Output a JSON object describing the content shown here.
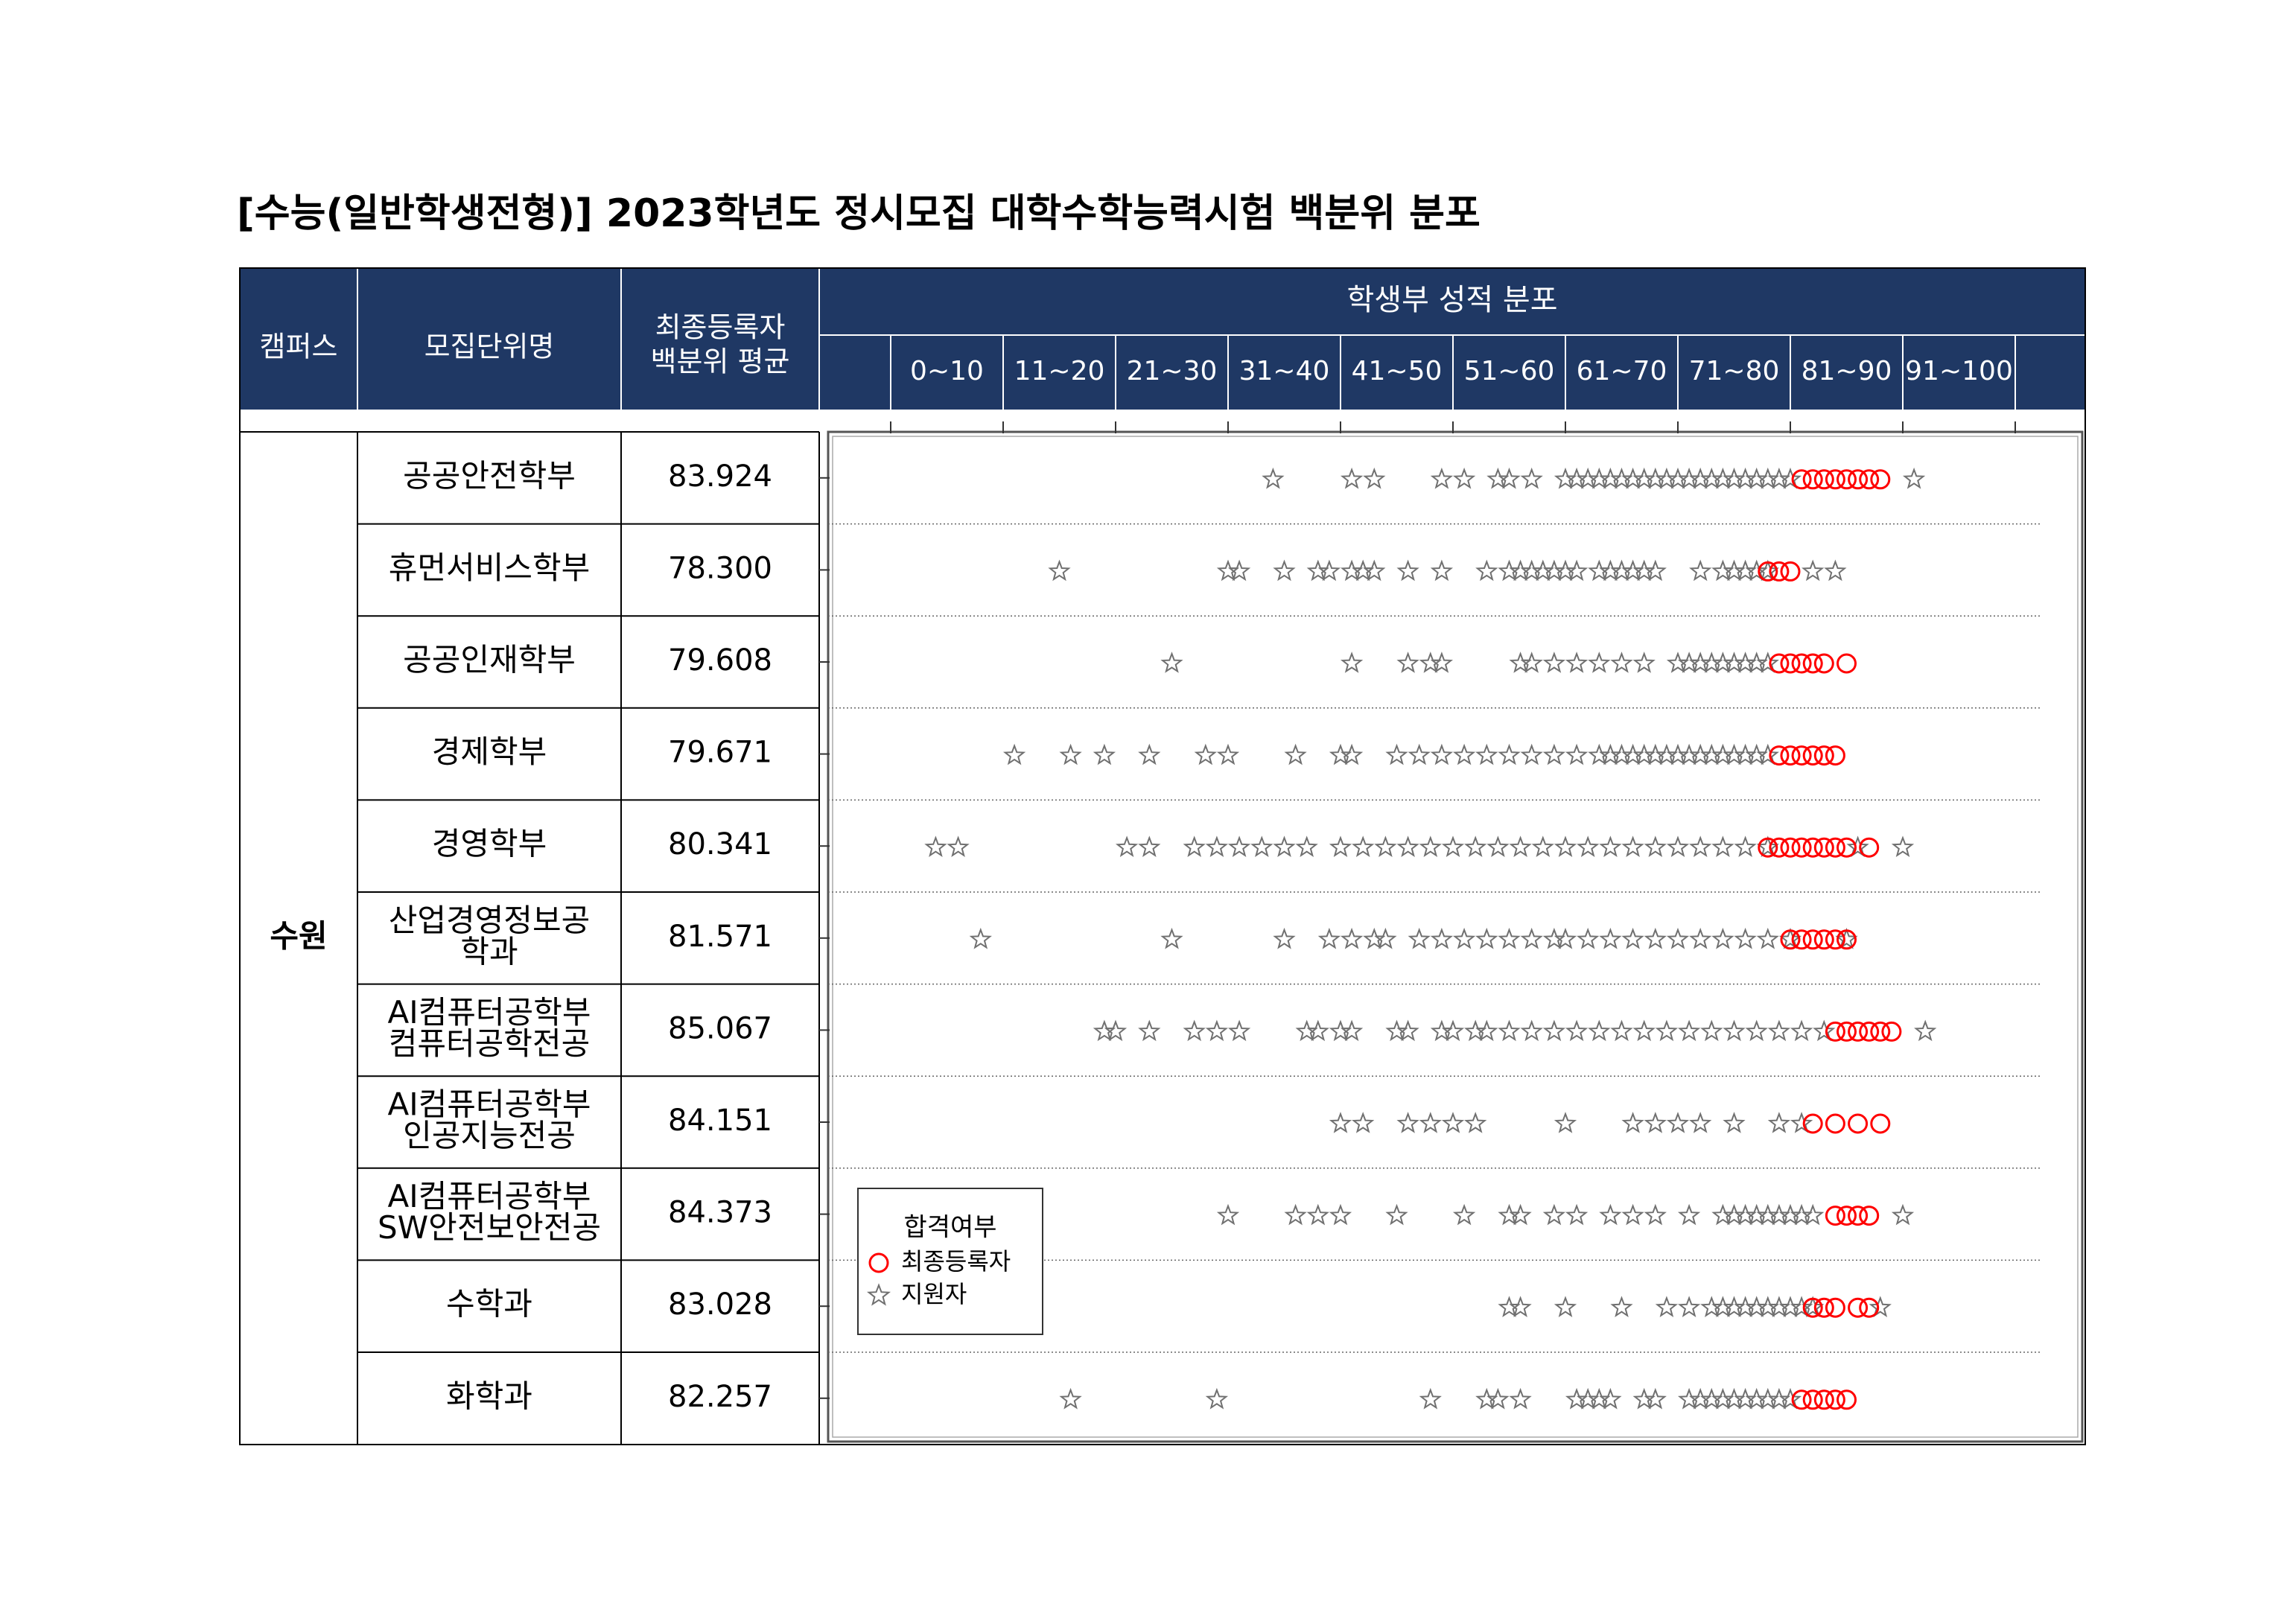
{
  "title": "[수능(일반학생전형)]  2023학년도  정시모집  대학수학능력시험  백분위  분포",
  "table": {
    "header": {
      "campus": "캠퍼스",
      "unit": "모집단위명",
      "avg": [
        "최종등록자",
        "백분위 평균"
      ],
      "distribution": "학생부 성적 분포",
      "bins": [
        "0~10",
        "11~20",
        "21~30",
        "31~40",
        "41~50",
        "51~60",
        "61~70",
        "71~80",
        "81~90",
        "91~100"
      ]
    },
    "campus": "수원",
    "rows": [
      {
        "unit": [
          "공공안전학부"
        ],
        "avg": "83.924"
      },
      {
        "unit": [
          "휴먼서비스학부"
        ],
        "avg": "78.300"
      },
      {
        "unit": [
          "공공인재학부"
        ],
        "avg": "79.608"
      },
      {
        "unit": [
          "경제학부"
        ],
        "avg": "79.671"
      },
      {
        "unit": [
          "경영학부"
        ],
        "avg": "80.341"
      },
      {
        "unit": [
          "산업경영정보공",
          "학과"
        ],
        "avg": "81.571"
      },
      {
        "unit": [
          "AI컴퓨터공학부",
          "컴퓨터공학전공"
        ],
        "avg": "85.067"
      },
      {
        "unit": [
          "AI컴퓨터공학부",
          "인공지능전공"
        ],
        "avg": "84.151"
      },
      {
        "unit": [
          "AI컴퓨터공학부",
          "SW안전보안전공"
        ],
        "avg": "84.373"
      },
      {
        "unit": [
          "수학과"
        ],
        "avg": "83.028"
      },
      {
        "unit": [
          "화학과"
        ],
        "avg": "82.257"
      }
    ]
  },
  "chart_data": {
    "type": "strip",
    "legend_title": "합격여부",
    "xlim": [
      0,
      100
    ],
    "xticks": [
      0,
      10,
      20,
      30,
      40,
      50,
      60,
      70,
      80,
      90,
      100
    ],
    "series": [
      {
        "name": "최종등록자",
        "color": "#ff0000",
        "marker": "circle",
        "values": [
          [
            81,
            82,
            83,
            84,
            85,
            86,
            87,
            88
          ],
          [
            78,
            79,
            80
          ],
          [
            79,
            80,
            81,
            82,
            83,
            85
          ],
          [
            79,
            80,
            81,
            82,
            83,
            84
          ],
          [
            78,
            79,
            80,
            81,
            82,
            83,
            84,
            85,
            87
          ],
          [
            80,
            81,
            82,
            83,
            84,
            85
          ],
          [
            84,
            85,
            86,
            87,
            88,
            89
          ],
          [
            82,
            84,
            86,
            88
          ],
          [
            84,
            85,
            86,
            87
          ],
          [
            82,
            83,
            84,
            86,
            87
          ],
          [
            81,
            82,
            83,
            84,
            85
          ]
        ]
      },
      {
        "name": "지원자",
        "color": "#707070",
        "marker": "star",
        "values": [
          [
            34,
            41,
            43,
            49,
            51,
            54,
            55,
            57,
            60,
            61,
            62,
            63,
            64,
            65,
            66,
            67,
            68,
            69,
            70,
            71,
            72,
            73,
            74,
            75,
            76,
            77,
            78,
            79,
            80,
            91
          ],
          [
            15,
            30,
            31,
            35,
            38,
            39,
            41,
            42,
            43,
            46,
            49,
            53,
            55,
            56,
            57,
            58,
            59,
            60,
            61,
            63,
            64,
            65,
            66,
            67,
            68,
            72,
            74,
            75,
            76,
            77,
            78,
            82,
            84
          ],
          [
            25,
            41,
            46,
            48,
            49,
            56,
            57,
            59,
            61,
            63,
            65,
            67,
            70,
            71,
            72,
            73,
            74,
            75,
            76,
            77,
            78
          ],
          [
            11,
            16,
            19,
            23,
            28,
            30,
            36,
            40,
            41,
            45,
            47,
            49,
            51,
            53,
            55,
            57,
            59,
            61,
            63,
            64,
            65,
            66,
            67,
            68,
            69,
            70,
            71,
            72,
            73,
            74,
            75,
            76,
            77,
            78
          ],
          [
            4,
            6,
            21,
            23,
            27,
            29,
            31,
            33,
            35,
            37,
            40,
            42,
            44,
            46,
            48,
            50,
            52,
            54,
            56,
            58,
            60,
            62,
            64,
            66,
            68,
            70,
            72,
            74,
            76,
            78,
            86,
            90
          ],
          [
            8,
            25,
            35,
            39,
            41,
            43,
            44,
            47,
            49,
            51,
            53,
            55,
            57,
            59,
            60,
            62,
            64,
            66,
            68,
            70,
            72,
            74,
            76,
            78,
            80,
            85
          ],
          [
            19,
            20,
            23,
            27,
            29,
            31,
            37,
            38,
            40,
            41,
            45,
            46,
            49,
            50,
            52,
            53,
            55,
            57,
            59,
            61,
            63,
            65,
            67,
            69,
            71,
            73,
            75,
            77,
            79,
            81,
            83,
            92
          ],
          [
            40,
            42,
            46,
            48,
            50,
            52,
            60,
            66,
            68,
            70,
            72,
            75,
            79,
            81
          ],
          [
            30,
            36,
            38,
            40,
            45,
            51,
            55,
            56,
            59,
            61,
            64,
            66,
            68,
            71,
            74,
            75,
            76,
            77,
            78,
            79,
            80,
            81,
            82,
            90
          ],
          [
            55,
            56,
            60,
            65,
            69,
            71,
            73,
            74,
            75,
            76,
            77,
            78,
            79,
            80,
            81,
            82,
            88
          ],
          [
            16,
            29,
            48,
            53,
            54,
            56,
            61,
            62,
            63,
            64,
            67,
            68,
            71,
            72,
            73,
            74,
            75,
            76,
            77,
            78,
            79,
            80
          ]
        ]
      }
    ]
  }
}
